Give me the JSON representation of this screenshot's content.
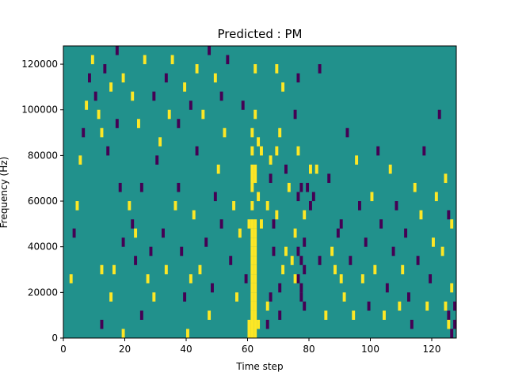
{
  "chart_data": {
    "type": "heatmap",
    "title": "Predicted : PM",
    "xlabel": "Time step",
    "ylabel": "Frequency (Hz)",
    "xlim": [
      0,
      128
    ],
    "ylim": [
      0,
      128000
    ],
    "x_ticks": [
      0,
      20,
      40,
      60,
      80,
      100,
      120
    ],
    "y_ticks": [
      0,
      20000,
      40000,
      60000,
      80000,
      100000,
      120000
    ],
    "x_tick_labels": [
      "0",
      "20",
      "40",
      "60",
      "80",
      "100",
      "120"
    ],
    "y_tick_labels": [
      "0",
      "20000",
      "40000",
      "60000",
      "80000",
      "100000",
      "120000"
    ],
    "grid": false,
    "levels": [
      -1,
      0,
      1
    ],
    "colors": {
      "-1": "#440154",
      "0": "#21918c",
      "1": "#fde725"
    },
    "background_level": 0,
    "freq_bin_hz": 4000,
    "time_bins": 128,
    "freq_bins": 32,
    "cells": [
      [
        61,
        0,
        1
      ],
      [
        61,
        1,
        1
      ],
      [
        61,
        2,
        1
      ],
      [
        61,
        3,
        1
      ],
      [
        61,
        4,
        1
      ],
      [
        61,
        5,
        1
      ],
      [
        61,
        6,
        1
      ],
      [
        61,
        7,
        1
      ],
      [
        61,
        8,
        1
      ],
      [
        61,
        9,
        1
      ],
      [
        61,
        10,
        1
      ],
      [
        61,
        11,
        1
      ],
      [
        61,
        12,
        1
      ],
      [
        62,
        0,
        1
      ],
      [
        62,
        1,
        1
      ],
      [
        62,
        2,
        1
      ],
      [
        62,
        3,
        1
      ],
      [
        62,
        4,
        1
      ],
      [
        62,
        5,
        1
      ],
      [
        62,
        6,
        1
      ],
      [
        62,
        7,
        1
      ],
      [
        62,
        8,
        1
      ],
      [
        62,
        9,
        1
      ],
      [
        62,
        10,
        1
      ],
      [
        62,
        11,
        1
      ],
      [
        62,
        12,
        1
      ],
      [
        60,
        0,
        1
      ],
      [
        60,
        1,
        1
      ],
      [
        63,
        1,
        1
      ],
      [
        61,
        14,
        1
      ],
      [
        61,
        16,
        1
      ],
      [
        61,
        17,
        1
      ],
      [
        62,
        17,
        1
      ],
      [
        61,
        18,
        1
      ],
      [
        62,
        18,
        1
      ],
      [
        63,
        15,
        1
      ],
      [
        60,
        12,
        1
      ],
      [
        61,
        20,
        1
      ],
      [
        61,
        22,
        1
      ],
      [
        64,
        20,
        1
      ],
      [
        63,
        21,
        1
      ],
      [
        69,
        29,
        1
      ],
      [
        62,
        24,
        1
      ],
      [
        64,
        12,
        1
      ],
      [
        62,
        29,
        1
      ],
      [
        75,
        24,
        -1
      ],
      [
        76,
        15,
        -1
      ],
      [
        76,
        9,
        -1
      ],
      [
        76,
        6,
        -1
      ],
      [
        77,
        5,
        -1
      ],
      [
        77,
        4,
        -1
      ],
      [
        77,
        8,
        -1
      ],
      [
        78,
        3,
        -1
      ],
      [
        78,
        10,
        -1
      ],
      [
        78,
        7,
        -1
      ],
      [
        75,
        6,
        1
      ],
      [
        75,
        11,
        1
      ],
      [
        74,
        8,
        1
      ],
      [
        76,
        20,
        1
      ],
      [
        76,
        28,
        -1
      ],
      [
        77,
        16,
        -1
      ],
      [
        78,
        13,
        1
      ],
      [
        79,
        16,
        -1
      ],
      [
        80,
        14,
        -1
      ],
      [
        80,
        18,
        1
      ],
      [
        81,
        15,
        -1
      ],
      [
        82,
        18,
        1
      ],
      [
        83,
        29,
        -1
      ],
      [
        83,
        8,
        -1
      ],
      [
        71,
        7,
        1
      ],
      [
        72,
        9,
        1
      ],
      [
        70,
        5,
        -1
      ],
      [
        70,
        2,
        -1
      ],
      [
        69,
        13,
        1
      ],
      [
        69,
        20,
        1
      ],
      [
        70,
        22,
        1
      ],
      [
        71,
        27,
        1
      ],
      [
        72,
        18,
        -1
      ],
      [
        73,
        16,
        1
      ],
      [
        67,
        19,
        1
      ],
      [
        68,
        12,
        -1
      ],
      [
        68,
        9,
        -1
      ],
      [
        67,
        4,
        -1
      ],
      [
        66,
        3,
        1
      ],
      [
        66,
        1,
        -1
      ],
      [
        66,
        14,
        1
      ],
      [
        67,
        17,
        -1
      ],
      [
        12,
        1,
        -1
      ],
      [
        12,
        7,
        1
      ],
      [
        12,
        22,
        1
      ],
      [
        14,
        20,
        -1
      ],
      [
        15,
        4,
        1
      ],
      [
        16,
        7,
        1
      ],
      [
        17,
        23,
        -1
      ],
      [
        18,
        16,
        -1
      ],
      [
        19,
        10,
        -1
      ],
      [
        19,
        0,
        1
      ],
      [
        21,
        14,
        1
      ],
      [
        22,
        12,
        -1
      ],
      [
        23,
        11,
        1
      ],
      [
        23,
        8,
        -1
      ],
      [
        25,
        2,
        -1
      ],
      [
        25,
        16,
        -1
      ],
      [
        27,
        6,
        1
      ],
      [
        28,
        9,
        -1
      ],
      [
        29,
        4,
        1
      ],
      [
        30,
        19,
        -1
      ],
      [
        32,
        11,
        -1
      ],
      [
        33,
        7,
        1
      ],
      [
        34,
        24,
        1
      ],
      [
        36,
        14,
        1
      ],
      [
        37,
        16,
        -1
      ],
      [
        38,
        9,
        -1
      ],
      [
        39,
        4,
        -1
      ],
      [
        40,
        0,
        1
      ],
      [
        41,
        6,
        1
      ],
      [
        42,
        13,
        1
      ],
      [
        43,
        20,
        -1
      ],
      [
        44,
        7,
        1
      ],
      [
        46,
        10,
        -1
      ],
      [
        47,
        2,
        1
      ],
      [
        48,
        5,
        -1
      ],
      [
        49,
        15,
        -1
      ],
      [
        50,
        18,
        1
      ],
      [
        51,
        12,
        -1
      ],
      [
        52,
        22,
        1
      ],
      [
        54,
        8,
        -1
      ],
      [
        56,
        4,
        1
      ],
      [
        57,
        11,
        1
      ],
      [
        58,
        25,
        -1
      ],
      [
        59,
        6,
        -1
      ],
      [
        55,
        14,
        1
      ],
      [
        85,
        2,
        1
      ],
      [
        86,
        17,
        -1
      ],
      [
        87,
        9,
        1
      ],
      [
        88,
        7,
        1
      ],
      [
        89,
        11,
        -1
      ],
      [
        90,
        6,
        1
      ],
      [
        90,
        12,
        -1
      ],
      [
        91,
        4,
        1
      ],
      [
        92,
        22,
        -1
      ],
      [
        93,
        8,
        -1
      ],
      [
        94,
        2,
        1
      ],
      [
        95,
        19,
        1
      ],
      [
        96,
        14,
        -1
      ],
      [
        97,
        6,
        1
      ],
      [
        98,
        10,
        -1
      ],
      [
        99,
        3,
        -1
      ],
      [
        100,
        15,
        1
      ],
      [
        101,
        7,
        1
      ],
      [
        102,
        20,
        -1
      ],
      [
        103,
        12,
        -1
      ],
      [
        104,
        2,
        1
      ],
      [
        105,
        5,
        -1
      ],
      [
        106,
        18,
        1
      ],
      [
        107,
        9,
        -1
      ],
      [
        108,
        14,
        -1
      ],
      [
        109,
        3,
        1
      ],
      [
        110,
        7,
        1
      ],
      [
        111,
        11,
        -1
      ],
      [
        112,
        4,
        -1
      ],
      [
        113,
        1,
        -1
      ],
      [
        114,
        16,
        1
      ],
      [
        115,
        8,
        -1
      ],
      [
        116,
        13,
        1
      ],
      [
        117,
        20,
        -1
      ],
      [
        118,
        3,
        1
      ],
      [
        119,
        6,
        -1
      ],
      [
        120,
        10,
        1
      ],
      [
        121,
        15,
        1
      ],
      [
        122,
        24,
        -1
      ],
      [
        123,
        9,
        1
      ],
      [
        124,
        17,
        1
      ],
      [
        125,
        2,
        -1
      ],
      [
        126,
        5,
        1
      ],
      [
        127,
        1,
        -1
      ],
      [
        126,
        0,
        -1
      ],
      [
        125,
        1,
        1
      ],
      [
        124,
        3,
        1
      ],
      [
        127,
        3,
        -1
      ],
      [
        126,
        12,
        1
      ],
      [
        125,
        13,
        -1
      ],
      [
        2,
        6,
        1
      ],
      [
        3,
        11,
        -1
      ],
      [
        4,
        14,
        1
      ],
      [
        5,
        19,
        1
      ],
      [
        6,
        22,
        -1
      ],
      [
        7,
        25,
        1
      ],
      [
        8,
        28,
        -1
      ],
      [
        9,
        30,
        1
      ],
      [
        10,
        26,
        -1
      ],
      [
        11,
        24,
        1
      ],
      [
        13,
        29,
        -1
      ],
      [
        15,
        27,
        1
      ],
      [
        17,
        31,
        -1
      ],
      [
        19,
        28,
        1
      ],
      [
        22,
        26,
        1
      ],
      [
        24,
        23,
        1
      ],
      [
        26,
        30,
        1
      ],
      [
        29,
        26,
        -1
      ],
      [
        31,
        21,
        1
      ],
      [
        33,
        28,
        -1
      ],
      [
        35,
        30,
        1
      ],
      [
        37,
        23,
        -1
      ],
      [
        39,
        27,
        1
      ],
      [
        41,
        25,
        -1
      ],
      [
        43,
        29,
        1
      ],
      [
        45,
        24,
        1
      ],
      [
        47,
        31,
        -1
      ],
      [
        49,
        28,
        1
      ],
      [
        51,
        26,
        -1
      ],
      [
        53,
        30,
        -1
      ]
    ]
  }
}
